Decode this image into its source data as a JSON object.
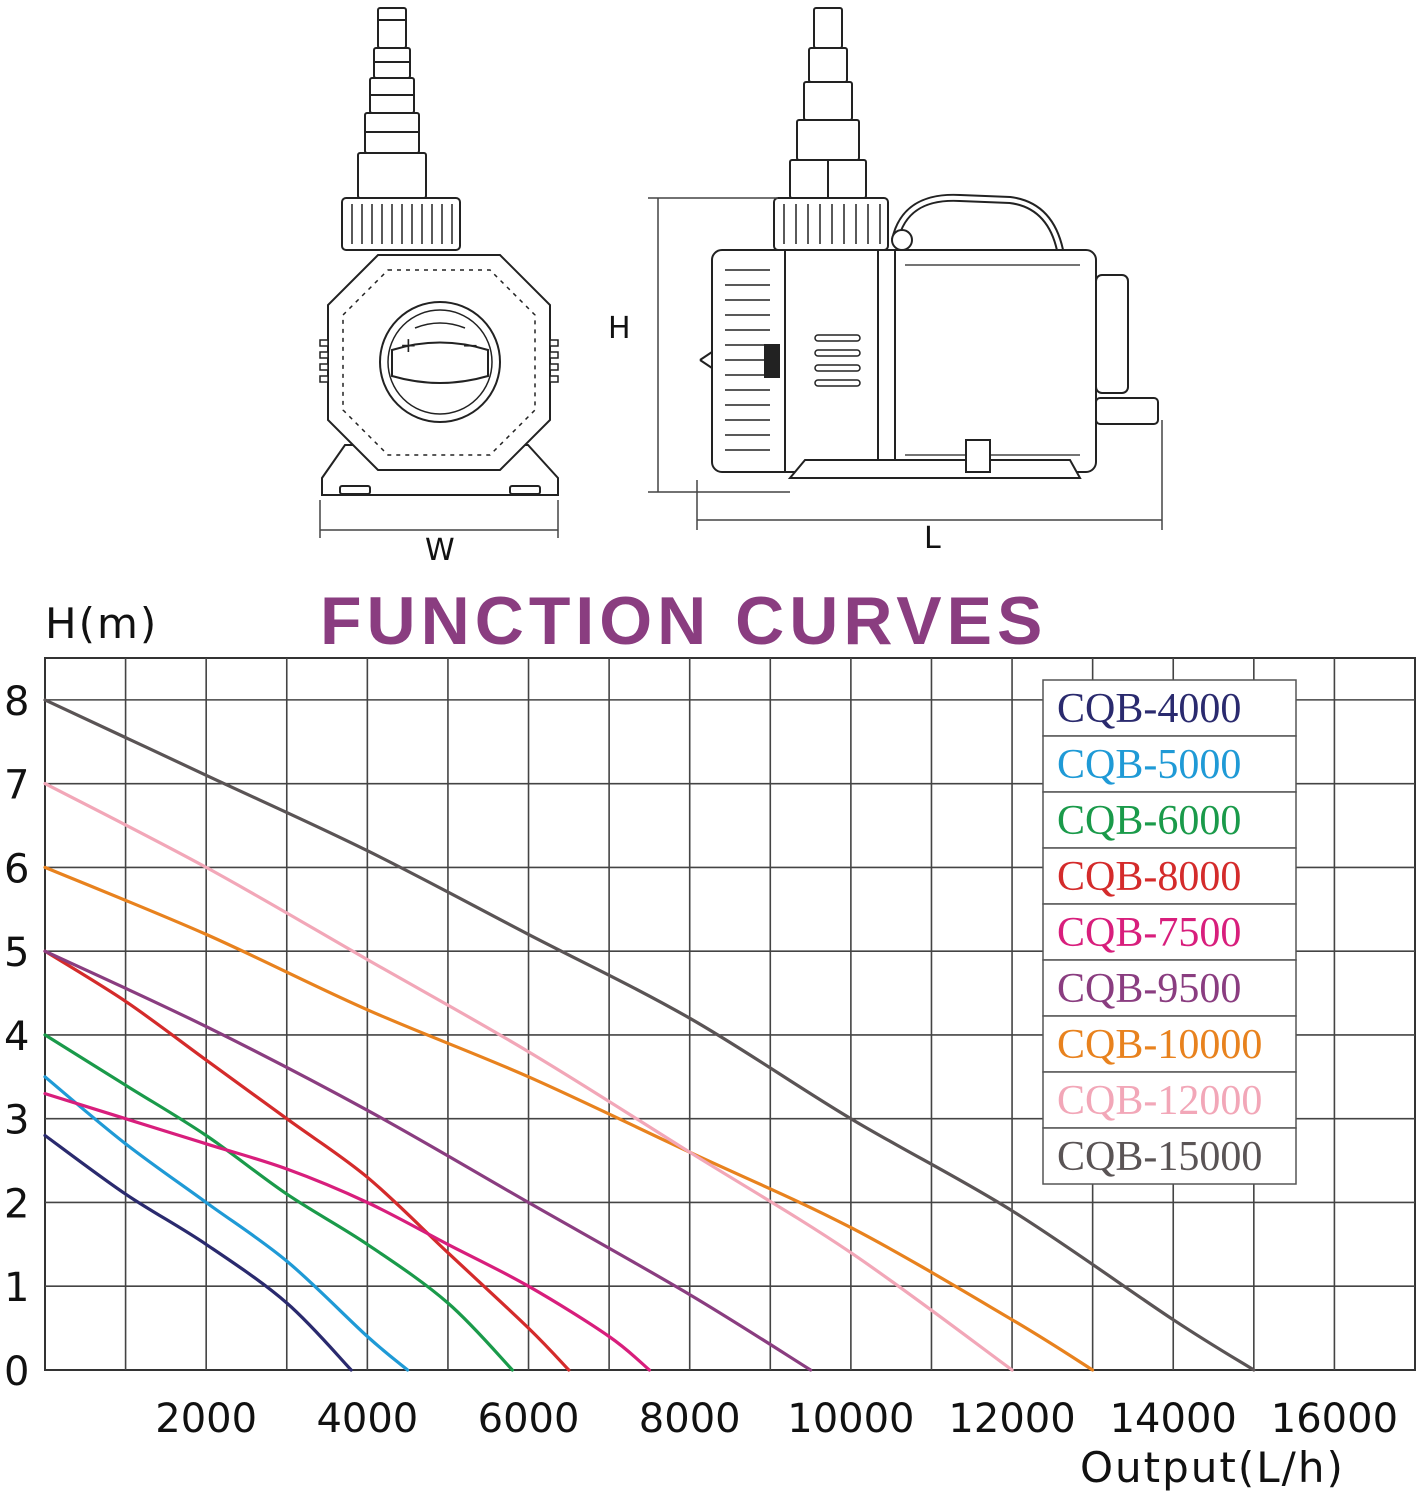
{
  "drawing": {
    "label_w": "W",
    "label_h": "H",
    "label_l": "L",
    "dial_plus": "+",
    "dial_minus": "−"
  },
  "chart_data": {
    "type": "line",
    "title": "FUNCTION CURVES",
    "title_color": "#8a3d80",
    "ylabel": "H(m)",
    "xlabel": "Output(L/h)",
    "xlim": [
      0,
      17000
    ],
    "ylim": [
      0,
      8.5
    ],
    "x_grid_step": 1000,
    "y_grid_step": 1,
    "x_ticks": [
      2000,
      4000,
      6000,
      8000,
      10000,
      12000,
      14000,
      16000
    ],
    "x_tick_labels": [
      "2000",
      "4000",
      "6000",
      "8000",
      "10000",
      "12000",
      "14000",
      "16000"
    ],
    "y_ticks": [
      0,
      1,
      2,
      3,
      4,
      5,
      6,
      7,
      8
    ],
    "y_tick_labels": [
      "0",
      "1",
      "2",
      "3",
      "4",
      "5",
      "6",
      "7",
      "8"
    ],
    "grid": true,
    "legend_position": "top-right",
    "series": [
      {
        "name": "CQB-4000",
        "color": "#2a2a6e",
        "x": [
          0,
          1000,
          2000,
          3000,
          3800
        ],
        "y": [
          2.8,
          2.1,
          1.5,
          0.8,
          0
        ]
      },
      {
        "name": "CQB-5000",
        "color": "#1f9ad6",
        "x": [
          0,
          1000,
          2000,
          3000,
          4000,
          4500
        ],
        "y": [
          3.5,
          2.7,
          2.0,
          1.3,
          0.4,
          0
        ]
      },
      {
        "name": "CQB-6000",
        "color": "#1a9a4a",
        "x": [
          0,
          1000,
          2000,
          3000,
          4000,
          5000,
          5800
        ],
        "y": [
          4.0,
          3.4,
          2.8,
          2.1,
          1.5,
          0.8,
          0
        ]
      },
      {
        "name": "CQB-8000",
        "color": "#d42b2b",
        "x": [
          0,
          1000,
          2000,
          3000,
          4000,
          5000,
          6000,
          6500
        ],
        "y": [
          5.0,
          4.4,
          3.7,
          3.0,
          2.3,
          1.4,
          0.5,
          0
        ]
      },
      {
        "name": "CQB-7500",
        "color": "#d81e7c",
        "x": [
          0,
          1000,
          2000,
          3000,
          4000,
          5000,
          6000,
          7000,
          7500
        ],
        "y": [
          3.3,
          3.0,
          2.7,
          2.4,
          2.0,
          1.5,
          1.0,
          0.4,
          0
        ]
      },
      {
        "name": "CQB-9500",
        "color": "#8a3d80",
        "x": [
          0,
          2000,
          4000,
          6000,
          8000,
          9500
        ],
        "y": [
          5.0,
          4.1,
          3.1,
          2.0,
          0.9,
          0
        ]
      },
      {
        "name": "CQB-10000",
        "color": "#e8821e",
        "x": [
          0,
          2000,
          4000,
          6000,
          8000,
          10000,
          12000,
          13000
        ],
        "y": [
          6.0,
          5.2,
          4.3,
          3.5,
          2.6,
          1.7,
          0.6,
          0
        ]
      },
      {
        "name": "CQB-12000",
        "color": "#f2a7b8",
        "x": [
          0,
          2000,
          4000,
          6000,
          8000,
          10000,
          12000
        ],
        "y": [
          7.0,
          6.0,
          4.9,
          3.8,
          2.6,
          1.4,
          0
        ]
      },
      {
        "name": "CQB-15000",
        "color": "#5a5455",
        "x": [
          0,
          2000,
          4000,
          6000,
          8000,
          10000,
          12000,
          14000,
          15000
        ],
        "y": [
          8.0,
          7.1,
          6.2,
          5.2,
          4.2,
          3.0,
          1.9,
          0.6,
          0
        ]
      }
    ]
  }
}
